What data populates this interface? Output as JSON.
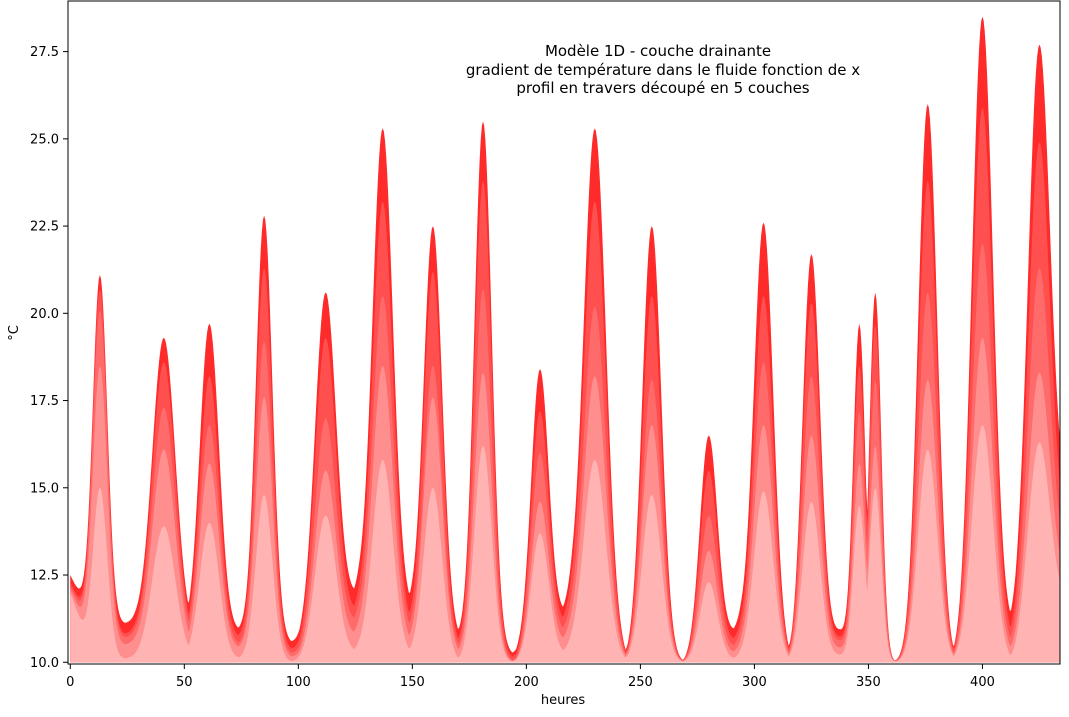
{
  "chart_data": {
    "type": "area",
    "title_lines": [
      "Modèle 1D - couche drainante",
      "gradient de température dans le fluide fonction de x",
      "profil en travers découpé en 5 couches"
    ],
    "xlabel": "heures",
    "ylabel": "°C",
    "xlim": [
      -1,
      434
    ],
    "ylim": [
      9.95,
      28.95
    ],
    "xticks": [
      "0",
      "50",
      "100",
      "150",
      "200",
      "250",
      "300",
      "350",
      "400"
    ],
    "xtick_values": [
      0,
      50,
      100,
      150,
      200,
      250,
      300,
      350,
      400
    ],
    "yticks": [
      "10.0",
      "12.5",
      "15.0",
      "17.5",
      "20.0",
      "22.5",
      "25.0",
      "27.5"
    ],
    "ytick_values": [
      10.0,
      12.5,
      15.0,
      17.5,
      20.0,
      22.5,
      25.0,
      27.5
    ],
    "baseline": 10.0,
    "grid": false,
    "colors": [
      "#ff2a2a",
      "#ff4f4f",
      "#ff6a6a",
      "#ff8f8f",
      "#ffb3b3"
    ],
    "start_level": [
      12.5,
      12.3,
      12.2,
      12.1,
      12.0
    ],
    "min_levels": [
      [
        11.1,
        10.8,
        10.7,
        10.5,
        10.1
      ],
      [
        10.8,
        10.6,
        10.5,
        10.3,
        10.1
      ],
      [
        10.9,
        10.7,
        10.5,
        10.4,
        10.1
      ],
      [
        10.5,
        10.3,
        10.2,
        10.1,
        10.0
      ],
      [
        12.0,
        11.5,
        11.2,
        10.8,
        10.3
      ],
      [
        11.5,
        11.0,
        10.8,
        10.5,
        10.2
      ],
      [
        10.6,
        10.4,
        10.3,
        10.2,
        10.0
      ],
      [
        10.2,
        10.1,
        10.0,
        10.0,
        10.0
      ],
      [
        11.6,
        11.3,
        11.0,
        10.7,
        10.3
      ],
      [
        10.0,
        10.0,
        10.0,
        10.0,
        10.0
      ],
      [
        10.0,
        10.0,
        10.0,
        10.0,
        10.0
      ],
      [
        11.0,
        10.7,
        10.5,
        10.3,
        10.1
      ],
      [
        10.0,
        10.0,
        10.0,
        10.0,
        10.0
      ],
      [
        10.9,
        10.7,
        10.6,
        10.4,
        10.2
      ],
      [
        10.0,
        10.0,
        10.0,
        10.0,
        10.0
      ],
      [
        10.0,
        10.0,
        10.0,
        10.0,
        10.0
      ],
      [
        10.0,
        10.0,
        10.0,
        10.0,
        10.0
      ],
      [
        11.0,
        10.6,
        10.4,
        10.2,
        10.0
      ],
      [
        14.0,
        13.0,
        12.5,
        12.0,
        11.5
      ]
    ],
    "peaks": [
      {
        "x": 13,
        "w": 3.2,
        "values": [
          21.1,
          20.7,
          20.1,
          18.5,
          15.0
        ]
      },
      {
        "x": 41,
        "w": 5.0,
        "values": [
          19.3,
          18.6,
          17.3,
          16.1,
          13.9
        ]
      },
      {
        "x": 61,
        "w": 4.2,
        "values": [
          19.7,
          18.2,
          16.8,
          15.7,
          14.0
        ]
      },
      {
        "x": 85,
        "w": 3.6,
        "values": [
          22.8,
          21.3,
          19.2,
          17.6,
          14.8
        ]
      },
      {
        "x": 112,
        "w": 4.6,
        "values": [
          20.6,
          19.3,
          17.0,
          15.5,
          14.2
        ]
      },
      {
        "x": 137,
        "w": 4.4,
        "values": [
          25.3,
          23.2,
          20.5,
          18.5,
          15.8
        ]
      },
      {
        "x": 159,
        "w": 4.0,
        "values": [
          22.5,
          21.2,
          18.5,
          17.6,
          15.0
        ]
      },
      {
        "x": 181,
        "w": 3.8,
        "values": [
          25.5,
          23.8,
          20.7,
          18.3,
          16.2
        ]
      },
      {
        "x": 206,
        "w": 3.8,
        "values": [
          18.4,
          17.2,
          16.0,
          14.6,
          13.7
        ]
      },
      {
        "x": 230,
        "w": 4.8,
        "values": [
          25.3,
          23.2,
          20.2,
          18.2,
          15.8
        ]
      },
      {
        "x": 255,
        "w": 4.2,
        "values": [
          22.5,
          20.5,
          18.1,
          16.8,
          14.8
        ]
      },
      {
        "x": 280,
        "w": 3.8,
        "values": [
          16.5,
          15.5,
          14.2,
          13.2,
          12.3
        ]
      },
      {
        "x": 304,
        "w": 4.2,
        "values": [
          22.6,
          20.5,
          18.6,
          16.8,
          14.9
        ]
      },
      {
        "x": 325,
        "w": 3.8,
        "values": [
          21.7,
          20.3,
          18.2,
          16.5,
          14.6
        ]
      },
      {
        "x": 346,
        "w": 2.6,
        "values": [
          19.7,
          18.5,
          17.2,
          15.7,
          14.5
        ]
      },
      {
        "x": 353,
        "w": 2.6,
        "values": [
          20.6,
          19.7,
          18.1,
          16.2,
          15.0
        ]
      },
      {
        "x": 376,
        "w": 4.2,
        "values": [
          26.0,
          23.8,
          20.6,
          18.1,
          16.1
        ]
      },
      {
        "x": 400,
        "w": 4.6,
        "values": [
          28.5,
          25.9,
          22.0,
          19.3,
          16.8
        ]
      },
      {
        "x": 425,
        "w": 4.8,
        "values": [
          27.7,
          24.9,
          21.3,
          18.3,
          16.3
        ]
      }
    ]
  }
}
